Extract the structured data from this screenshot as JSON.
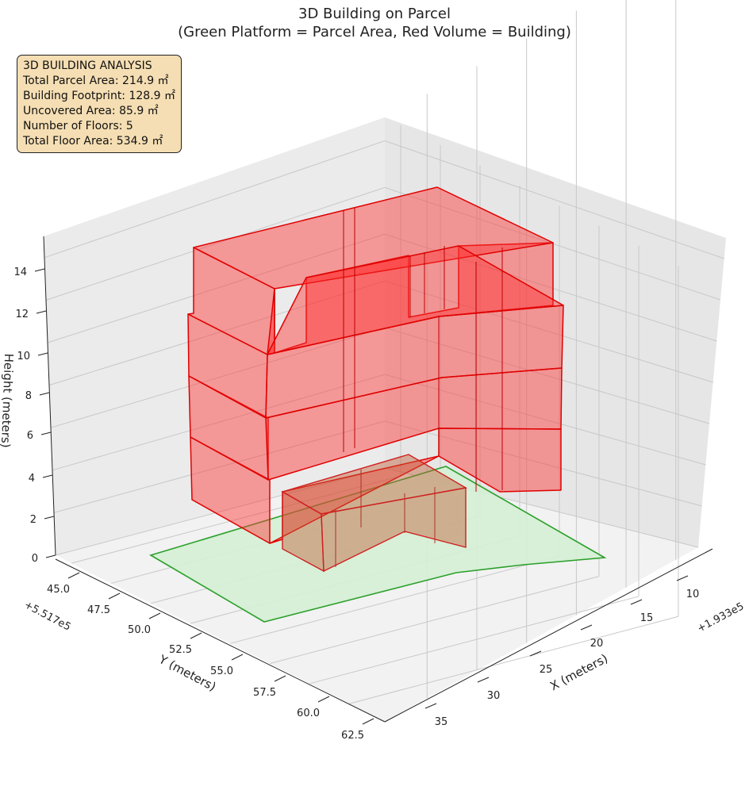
{
  "chart_data": {
    "type": "3d-polygon",
    "title": "3D Building on Parcel",
    "subtitle": "(Green Platform = Parcel Area, Red Volume = Building)",
    "xlabel": "X (meters)",
    "ylabel": "Y (meters)",
    "zlabel": "Height (meters)",
    "x_offset": "+1.933e5",
    "y_offset": "+5.517e5",
    "x_ticks": [
      "10",
      "15",
      "20",
      "25",
      "30",
      "35"
    ],
    "y_ticks": [
      "45.0",
      "47.5",
      "50.0",
      "52.5",
      "55.0",
      "57.5",
      "60.0",
      "62.5"
    ],
    "z_ticks": [
      "0",
      "2",
      "4",
      "6",
      "8",
      "10",
      "12",
      "14"
    ],
    "zlim": [
      0,
      15
    ],
    "colors": {
      "parcel": "#2ca02c",
      "parcel_fill": "#d4f0d4",
      "building": "#e00000",
      "building_fill": "#ff3030"
    }
  },
  "info": {
    "heading": "3D BUILDING ANALYSIS",
    "lines": [
      "Total Parcel Area: 214.9 ㎡",
      "Building Footprint: 128.9 ㎡",
      "Uncovered Area: 85.9 ㎡",
      "Number of Floors: 5",
      "Total Floor Area: 534.9 ㎡"
    ]
  }
}
